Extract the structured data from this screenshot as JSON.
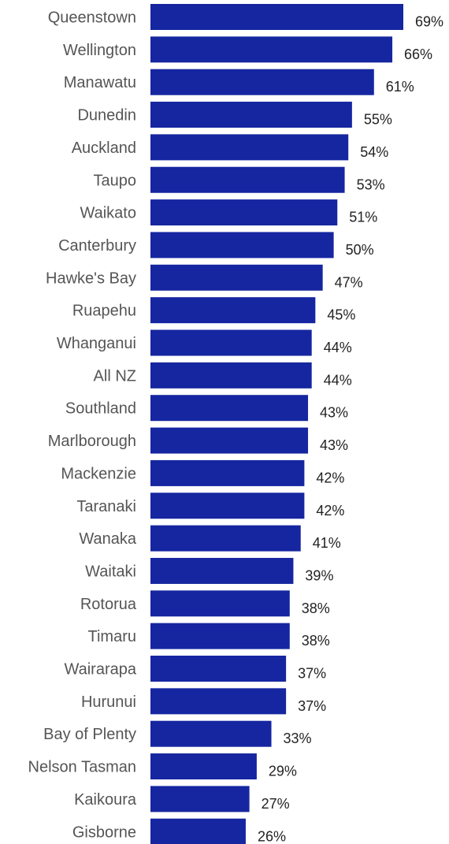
{
  "chart_data": {
    "type": "bar",
    "orientation": "horizontal",
    "categories": [
      "Queenstown",
      "Wellington",
      "Manawatu",
      "Dunedin",
      "Auckland",
      "Taupo",
      "Waikato",
      "Canterbury",
      "Hawke's Bay",
      "Ruapehu",
      "Whanganui",
      "All NZ",
      "Southland",
      "Marlborough",
      "Mackenzie",
      "Taranaki",
      "Wanaka",
      "Waitaki",
      "Rotorua",
      "Timaru",
      "Wairarapa",
      "Hurunui",
      "Bay of Plenty",
      "Nelson Tasman",
      "Kaikoura",
      "Gisborne"
    ],
    "values": [
      69,
      66,
      61,
      55,
      54,
      53,
      51,
      50,
      47,
      45,
      44,
      44,
      43,
      43,
      42,
      42,
      41,
      39,
      38,
      38,
      37,
      37,
      33,
      29,
      27,
      26
    ],
    "value_labels": [
      "69%",
      "66%",
      "61%",
      "55%",
      "54%",
      "53%",
      "51%",
      "50%",
      "47%",
      "45%",
      "44%",
      "44%",
      "43%",
      "43%",
      "42%",
      "42%",
      "41%",
      "39%",
      "38%",
      "38%",
      "37%",
      "37%",
      "33%",
      "29%",
      "27%",
      "26%"
    ],
    "bar_color": "#1526a0",
    "xlim": [
      0,
      69
    ],
    "grid": false,
    "legend": "none"
  }
}
